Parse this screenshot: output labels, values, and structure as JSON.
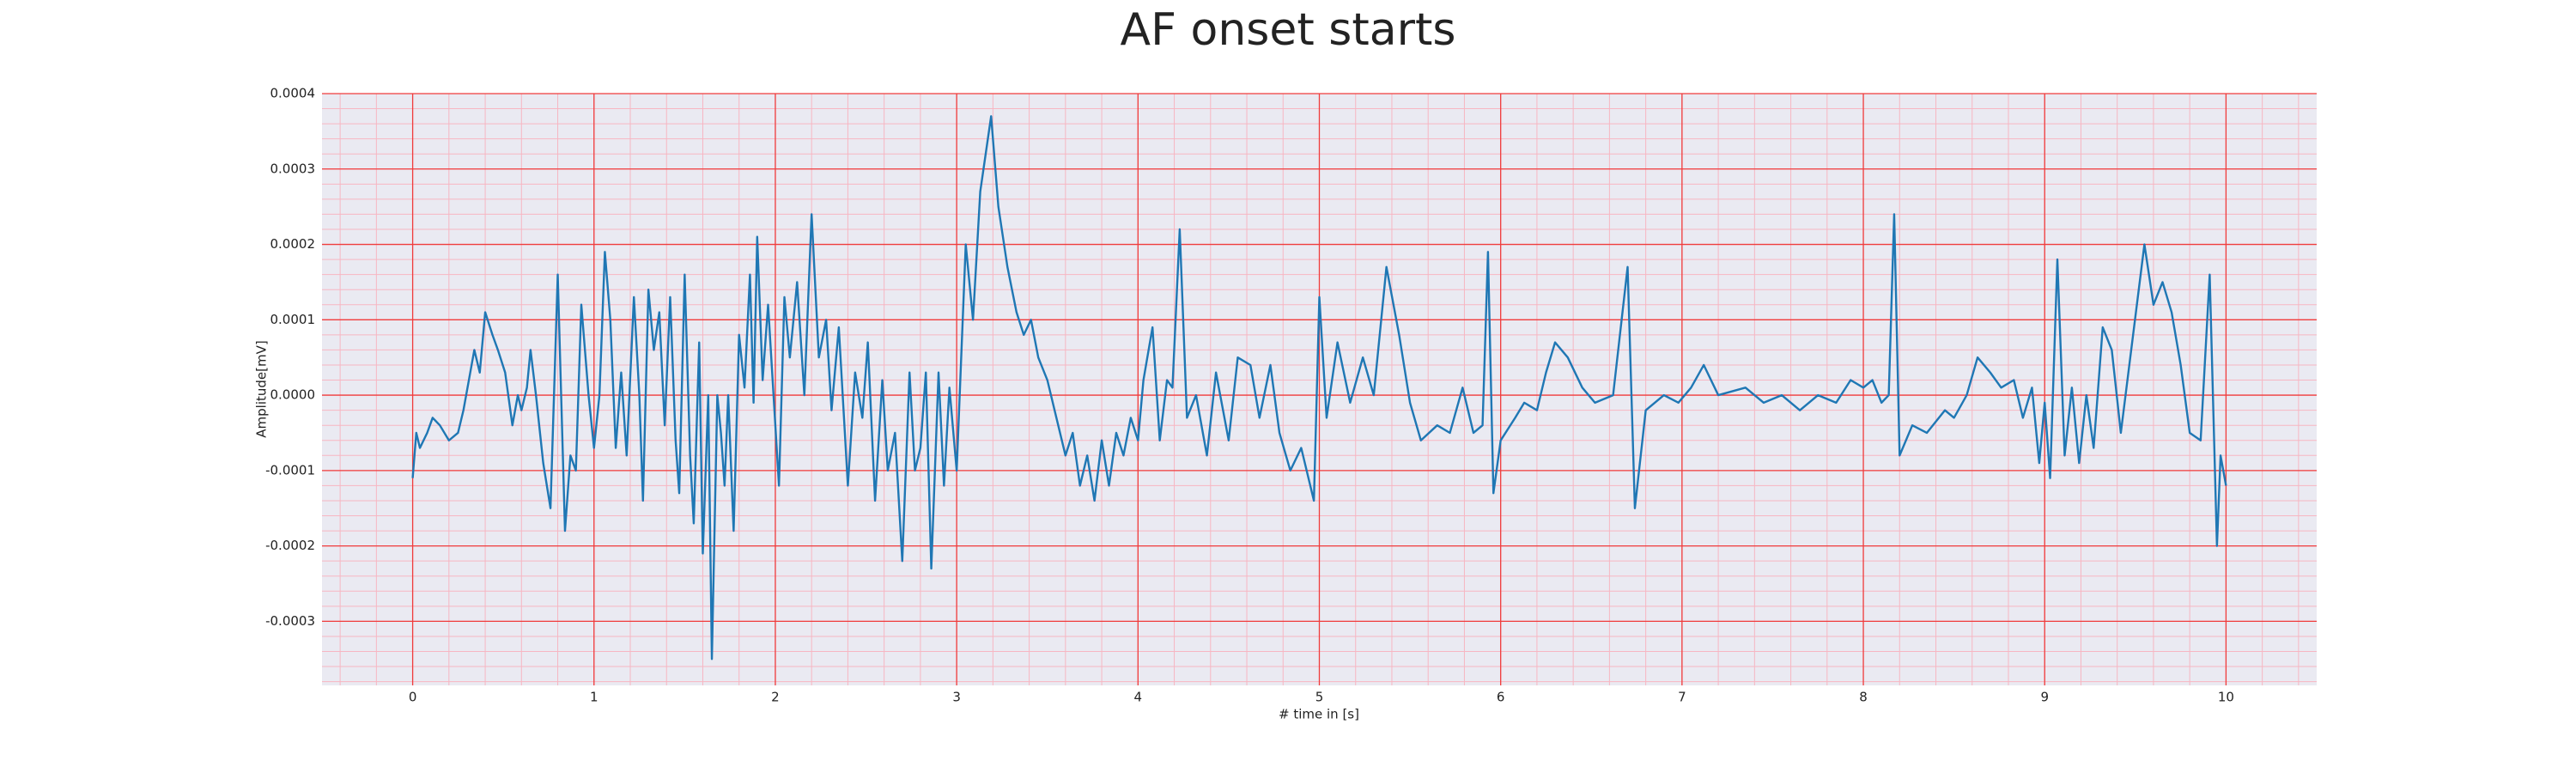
{
  "chart_data": {
    "type": "line",
    "title": "AF onset starts",
    "xlabel": "# time in [s]",
    "ylabel": "Amplitude[mV]",
    "color": "#1f77b4",
    "background": "#eaeaf2",
    "grid": true,
    "grid_color": "#f03c3c",
    "minor_grid": true,
    "minor_grid_color": "#f7b6c2",
    "xlim": [
      -0.5,
      10.5
    ],
    "xticks": [
      0,
      1,
      2,
      3,
      4,
      5,
      6,
      7,
      8,
      9,
      10
    ],
    "ylim": [
      -0.000385,
      0.0004
    ],
    "yticks": [
      -0.0003,
      -0.0002,
      -0.0001,
      {
        "value": 0,
        "label": "0.0000"
      },
      0.0001,
      0.0002,
      0.0003,
      0.0004
    ],
    "x": [
      0,
      0.02,
      0.04,
      0.08,
      0.11,
      0.15,
      0.2,
      0.25,
      0.28,
      0.31,
      0.34,
      0.37,
      0.4,
      0.44,
      0.47,
      0.51,
      0.55,
      0.58,
      0.6,
      0.63,
      0.65,
      0.68,
      0.72,
      0.76,
      0.8,
      0.84,
      0.87,
      0.9,
      0.93,
      0.97,
      1.0,
      1.03,
      1.06,
      1.09,
      1.12,
      1.15,
      1.18,
      1.22,
      1.25,
      1.27,
      1.3,
      1.33,
      1.36,
      1.39,
      1.42,
      1.45,
      1.47,
      1.5,
      1.53,
      1.55,
      1.58,
      1.6,
      1.63,
      1.65,
      1.68,
      1.7,
      1.72,
      1.74,
      1.77,
      1.8,
      1.83,
      1.86,
      1.88,
      1.9,
      1.93,
      1.96,
      2.02,
      2.05,
      2.08,
      2.12,
      2.16,
      2.2,
      2.24,
      2.28,
      2.31,
      2.35,
      2.4,
      2.44,
      2.48,
      2.51,
      2.55,
      2.59,
      2.62,
      2.66,
      2.7,
      2.74,
      2.77,
      2.8,
      2.83,
      2.86,
      2.9,
      2.93,
      2.96,
      3.0,
      3.05,
      3.09,
      3.13,
      3.19,
      3.23,
      3.28,
      3.33,
      3.37,
      3.41,
      3.45,
      3.5,
      3.55,
      3.6,
      3.64,
      3.68,
      3.72,
      3.76,
      3.8,
      3.84,
      3.88,
      3.92,
      3.96,
      4.0,
      4.03,
      4.08,
      4.12,
      4.16,
      4.19,
      4.23,
      4.27,
      4.32,
      4.38,
      4.43,
      4.5,
      4.55,
      4.62,
      4.67,
      4.73,
      4.78,
      4.84,
      4.9,
      4.97,
      5.0,
      5.04,
      5.1,
      5.17,
      5.24,
      5.3,
      5.37,
      5.44,
      5.5,
      5.56,
      5.65,
      5.72,
      5.79,
      5.85,
      5.9,
      5.93,
      5.96,
      6.0,
      6.08,
      6.13,
      6.2,
      6.25,
      6.3,
      6.37,
      6.45,
      6.52,
      6.62,
      6.7,
      6.74,
      6.8,
      6.9,
      6.98,
      7.05,
      7.12,
      7.2,
      7.35,
      7.45,
      7.55,
      7.65,
      7.75,
      7.85,
      7.93,
      8.0,
      8.05,
      8.1,
      8.14,
      8.17,
      8.2,
      8.27,
      8.35,
      8.45,
      8.5,
      8.57,
      8.63,
      8.7,
      8.76,
      8.83,
      8.88,
      8.93,
      8.97,
      9.0,
      9.03,
      9.07,
      9.11,
      9.15,
      9.19,
      9.23,
      9.27,
      9.32,
      9.37,
      9.42,
      9.55,
      9.6,
      9.65,
      9.7,
      9.75,
      9.8,
      9.86,
      9.91,
      9.95,
      9.97,
      10.0
    ],
    "values": [
      -0.00011,
      -5e-05,
      -7e-05,
      -5e-05,
      -3e-05,
      -4e-05,
      -6e-05,
      -5e-05,
      -2e-05,
      2e-05,
      6e-05,
      3e-05,
      0.00011,
      8e-05,
      6e-05,
      3e-05,
      -4e-05,
      0,
      -2e-05,
      1e-05,
      6e-05,
      0,
      -9e-05,
      -0.00015,
      0.00016,
      -0.00018,
      -8e-05,
      -0.0001,
      0.00012,
      0,
      -7e-05,
      0,
      0.00019,
      0.0001,
      -7e-05,
      3e-05,
      -8e-05,
      0.00013,
      0,
      -0.00014,
      0.00014,
      6e-05,
      0.00011,
      -4e-05,
      0.00013,
      -6e-05,
      -0.00013,
      0.00016,
      -8e-05,
      -0.00017,
      7e-05,
      -0.00021,
      0,
      -0.00035,
      0,
      -5e-05,
      -0.00012,
      0,
      -0.00018,
      8e-05,
      1e-05,
      0.00016,
      -1e-05,
      0.00021,
      2e-05,
      0.00012,
      -0.00012,
      0.00013,
      5e-05,
      0.00015,
      0,
      0.00024,
      5e-05,
      0.0001,
      -2e-05,
      9e-05,
      -0.00012,
      3e-05,
      -3e-05,
      7e-05,
      -0.00014,
      2e-05,
      -0.0001,
      -5e-05,
      -0.00022,
      3e-05,
      -0.0001,
      -7e-05,
      3e-05,
      -0.00023,
      3e-05,
      -0.00012,
      1e-05,
      -0.0001,
      0.0002,
      0.0001,
      0.00027,
      0.00037,
      0.00025,
      0.00017,
      0.00011,
      8e-05,
      0.0001,
      5e-05,
      2e-05,
      -3e-05,
      -8e-05,
      -5e-05,
      -0.00012,
      -8e-05,
      -0.00014,
      -6e-05,
      -0.00012,
      -5e-05,
      -8e-05,
      -3e-05,
      -6e-05,
      2e-05,
      9e-05,
      -6e-05,
      2e-05,
      1e-05,
      0.00022,
      -3e-05,
      0,
      -8e-05,
      3e-05,
      -6e-05,
      5e-05,
      4e-05,
      -3e-05,
      4e-05,
      -5e-05,
      -0.0001,
      -7e-05,
      -0.00014,
      0.00013,
      -3e-05,
      7e-05,
      -1e-05,
      5e-05,
      0,
      0.00017,
      8e-05,
      -1e-05,
      -6e-05,
      -4e-05,
      -5e-05,
      1e-05,
      -5e-05,
      -4e-05,
      0.00019,
      -0.00013,
      -6e-05,
      -3e-05,
      -1e-05,
      -2e-05,
      3e-05,
      7e-05,
      5e-05,
      1e-05,
      -1e-05,
      0,
      0.00017,
      -0.00015,
      -2e-05,
      0,
      -1e-05,
      1e-05,
      4e-05,
      0,
      1e-05,
      -1e-05,
      0,
      -2e-05,
      0,
      -1e-05,
      2e-05,
      1e-05,
      2e-05,
      -1e-05,
      0,
      0.00024,
      -8e-05,
      -4e-05,
      -5e-05,
      -2e-05,
      -3e-05,
      0,
      5e-05,
      3e-05,
      1e-05,
      2e-05,
      -3e-05,
      1e-05,
      -9e-05,
      -1e-05,
      -0.00011,
      0.00018,
      -8e-05,
      1e-05,
      -9e-05,
      0,
      -7e-05,
      9e-05,
      6e-05,
      -5e-05,
      0.0002,
      0.00012,
      0.00015,
      0.00011,
      4e-05,
      -5e-05,
      -6e-05,
      0.00016,
      -0.0002,
      -8e-05,
      -0.00012
    ]
  }
}
